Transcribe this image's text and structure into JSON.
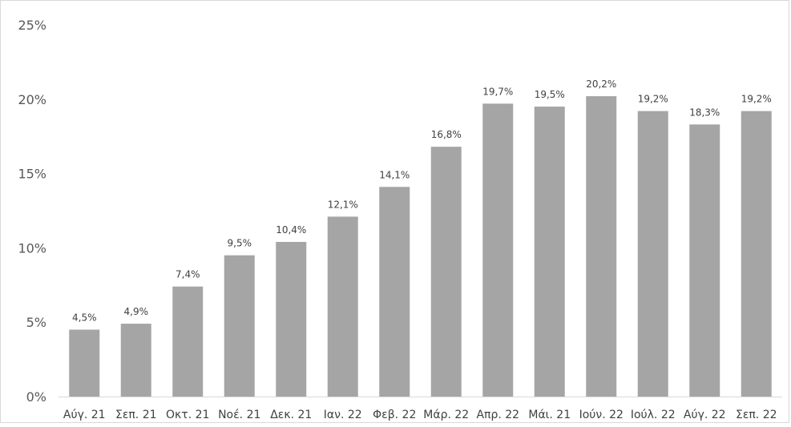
{
  "chart_data": {
    "type": "bar",
    "title": "",
    "xlabel": "",
    "ylabel": "",
    "categories": [
      "Αύγ. 21",
      "Σεπ. 21",
      "Οκτ. 21",
      "Νοέ. 21",
      "Δεκ. 21",
      "Ιαν. 22",
      "Φεβ. 22",
      "Μάρ. 22",
      "Απρ. 22",
      "Μάι. 21",
      "Ιούν. 22",
      "Ιούλ. 22",
      "Αύγ. 22",
      "Σεπ. 22"
    ],
    "values": [
      4.5,
      4.9,
      7.4,
      9.5,
      10.4,
      12.1,
      14.1,
      16.8,
      19.7,
      19.5,
      20.2,
      19.2,
      18.3,
      19.2
    ],
    "data_labels": [
      "4,5%",
      "4,9%",
      "7,4%",
      "9,5%",
      "10,4%",
      "12,1%",
      "14,1%",
      "16,8%",
      "19,7%",
      "19,5%",
      "20,2%",
      "19,2%",
      "18,3%",
      "19,2%"
    ],
    "ylim": [
      0,
      25
    ],
    "yticks": [
      0,
      5,
      10,
      15,
      20,
      25
    ],
    "ytick_labels": [
      "0%",
      "5%",
      "10%",
      "15%",
      "20%",
      "25%"
    ],
    "grid": false,
    "legend": "none",
    "bar_color": "#a5a5a5",
    "axis_color": "#d9d9d9"
  }
}
